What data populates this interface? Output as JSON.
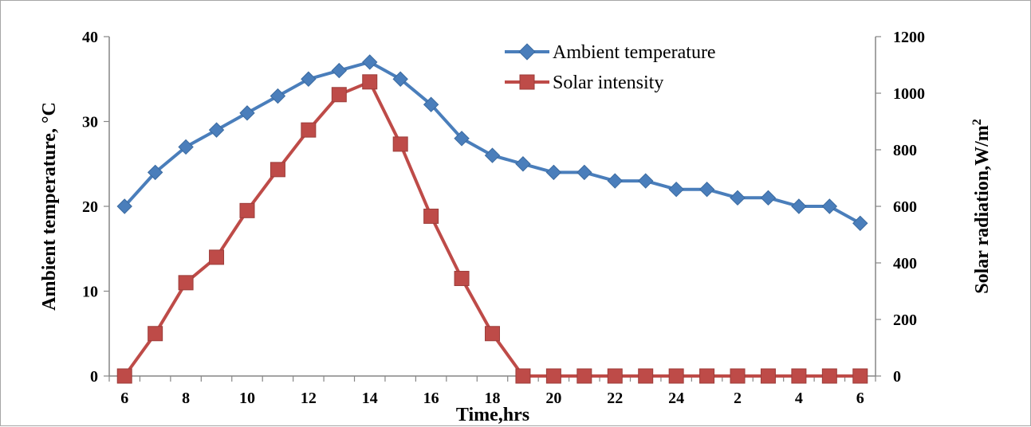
{
  "chart_data": {
    "type": "line",
    "x": [
      "6",
      "7",
      "8",
      "9",
      "10",
      "11",
      "12",
      "13",
      "14",
      "15",
      "16",
      "17",
      "18",
      "19",
      "20",
      "21",
      "22",
      "23",
      "24",
      "1",
      "2",
      "3",
      "4",
      "5",
      "6"
    ],
    "xtick_labels": [
      "6",
      "8",
      "10",
      "12",
      "14",
      "16",
      "18",
      "20",
      "22",
      "24",
      "2",
      "4",
      "6"
    ],
    "series": [
      {
        "name": "Ambient temperature",
        "axis": "left",
        "color": "#4a7ebb",
        "marker": "diamond",
        "values": [
          20,
          24,
          27,
          29,
          31,
          33,
          35,
          36,
          37,
          35,
          32,
          28,
          26,
          25,
          24,
          24,
          23,
          23,
          22,
          22,
          21,
          21,
          20,
          20,
          18
        ]
      },
      {
        "name": "Solar intensity",
        "axis": "right",
        "color": "#be4b48",
        "marker": "square",
        "values": [
          0,
          150,
          330,
          420,
          585,
          730,
          870,
          995,
          1040,
          820,
          565,
          345,
          150,
          0,
          0,
          0,
          0,
          0,
          0,
          0,
          0,
          0,
          0,
          0,
          0
        ]
      }
    ],
    "xlabel": "Time,hrs",
    "ylabel_left": "Ambient  temperature,  °C",
    "ylabel_right_main": "Solar radiation,W/m",
    "ylabel_right_sup": "2",
    "ylim_left": [
      0,
      40
    ],
    "yticks_left": [
      "0",
      "10",
      "20",
      "30",
      "40"
    ],
    "ylim_right": [
      0,
      1200
    ],
    "yticks_right": [
      "0",
      "200",
      "400",
      "600",
      "800",
      "1000",
      "1200"
    ],
    "grid": false,
    "legend": "top-right"
  }
}
